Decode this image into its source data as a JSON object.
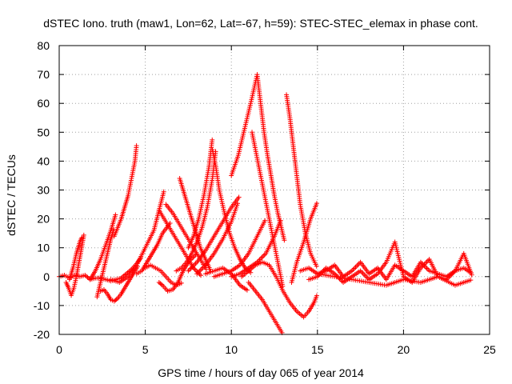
{
  "chart_data": {
    "type": "scatter",
    "title": "dSTEC Iono. truth (maw1, Lon=62, Lat=-67, h=59): STEC-STEC_elemax in phase cont.",
    "xlabel": "GPS time / hours of day 065 of year 2014",
    "ylabel": "dSTEC  / TECUs",
    "xlim": [
      0,
      25
    ],
    "ylim": [
      -20,
      80
    ],
    "xticks": [
      0,
      5,
      10,
      15,
      20,
      25
    ],
    "yticks": [
      -20,
      -10,
      0,
      10,
      20,
      30,
      40,
      50,
      60,
      70,
      80
    ],
    "grid": true,
    "marker": "+",
    "color": "#ff0000",
    "series": [
      {
        "x": [
          0,
          0.3,
          0.6,
          0.9,
          1.2,
          1.5,
          1.8,
          2.1,
          2.4,
          2.7,
          3.0,
          3.3,
          3.6,
          3.9,
          4.2,
          4.5,
          4.8
        ],
        "y": [
          0,
          0.5,
          -0.5,
          0.5,
          0,
          0.5,
          -1,
          -0.5,
          -0.5,
          -1,
          -1.5,
          -1,
          -0.5,
          1,
          2.5,
          4.5,
          7
        ]
      },
      {
        "x": [
          0.4,
          0.55,
          0.7,
          0.85,
          1.0,
          1.15,
          1.3,
          1.45
        ],
        "y": [
          -2,
          -4,
          -6.5,
          -4,
          0,
          5,
          10,
          15
        ]
      },
      {
        "x": [
          0.6,
          0.8,
          1.0,
          1.2,
          1.35
        ],
        "y": [
          -1,
          3,
          8,
          12,
          14
        ]
      },
      {
        "x": [
          2.2,
          2.4,
          2.6,
          2.8,
          3.0,
          3.2
        ],
        "y": [
          -7,
          -2,
          3,
          8,
          13,
          17
        ]
      },
      {
        "x": [
          1.8,
          2.1,
          2.4,
          2.7,
          3.0,
          3.3
        ],
        "y": [
          -1,
          2,
          6,
          11,
          16,
          22
        ]
      },
      {
        "x": [
          2.4,
          2.6,
          2.8,
          3.0,
          3.2,
          3.4,
          3.6,
          3.8,
          4.0,
          4.2,
          4.4,
          4.6
        ],
        "y": [
          -5,
          -4.5,
          -6,
          -8,
          -8.5,
          -7.5,
          -6,
          -4,
          -2,
          0,
          2,
          4
        ]
      },
      {
        "x": [
          3.2,
          3.4,
          3.6,
          3.8,
          4.0,
          4.2,
          4.4,
          4.5
        ],
        "y": [
          14,
          17,
          20,
          24,
          28,
          34,
          40,
          46
        ]
      },
      {
        "x": [
          3.0,
          3.5,
          4.0,
          4.5,
          5.0,
          5.5,
          5.8,
          6.1
        ],
        "y": [
          -1,
          -2,
          0,
          4,
          10,
          16,
          23,
          30
        ]
      },
      {
        "x": [
          4.5,
          4.8,
          5.1,
          5.4,
          5.7,
          6.0,
          6.5
        ],
        "y": [
          1,
          2,
          5,
          8,
          11,
          15,
          19
        ]
      },
      {
        "x": [
          5.8,
          6.0,
          6.3,
          6.6,
          6.9,
          7.2,
          7.5,
          8.0
        ],
        "y": [
          -2,
          -3,
          -5,
          -4.5,
          -2,
          2,
          5,
          8
        ]
      },
      {
        "x": [
          5.0,
          5.3,
          5.6,
          5.9,
          6.2,
          6.5,
          6.8,
          7.2
        ],
        "y": [
          3,
          4,
          3,
          2,
          0,
          -2,
          -3,
          -2
        ]
      },
      {
        "x": [
          5.8,
          6.2,
          6.6,
          7.0,
          7.4,
          7.8,
          8.3
        ],
        "y": [
          23,
          19,
          15,
          11,
          7,
          3,
          0
        ]
      },
      {
        "x": [
          6.2,
          6.6,
          7.0,
          7.4,
          7.8,
          8.2,
          8.6
        ],
        "y": [
          25,
          22,
          18,
          14,
          10,
          6,
          2
        ]
      },
      {
        "x": [
          7.0,
          7.3,
          7.6,
          7.9,
          8.2,
          8.5,
          8.8
        ],
        "y": [
          34,
          28,
          22,
          16,
          10,
          6,
          2
        ]
      },
      {
        "x": [
          6.8,
          7.1,
          7.4,
          7.7,
          8.0,
          8.3,
          8.6,
          8.9,
          9.1
        ],
        "y": [
          2,
          3,
          5,
          8,
          12,
          17,
          24,
          34,
          44
        ]
      },
      {
        "x": [
          7.5,
          7.8,
          8.1,
          8.4,
          8.7,
          8.9
        ],
        "y": [
          10,
          14,
          20,
          28,
          38,
          48
        ]
      },
      {
        "x": [
          8.9,
          9.1,
          9.3,
          9.6,
          9.9,
          10.2,
          10.5,
          10.8,
          11.2
        ],
        "y": [
          44,
          38,
          30,
          22,
          15,
          10,
          6,
          3,
          1
        ]
      },
      {
        "x": [
          7.5,
          8.0,
          8.5,
          9.0,
          9.5,
          10.0,
          10.5
        ],
        "y": [
          2,
          5,
          9,
          14,
          19,
          24,
          28
        ]
      },
      {
        "x": [
          8.0,
          8.5,
          9.0,
          9.5,
          10.0,
          10.4
        ],
        "y": [
          1,
          4,
          8,
          13,
          19,
          26
        ]
      },
      {
        "x": [
          8.5,
          9.0,
          9.5,
          10.0,
          10.5,
          11.0
        ],
        "y": [
          1,
          2,
          3,
          1,
          -3,
          -5
        ]
      },
      {
        "x": [
          9.0,
          9.5,
          10.0,
          10.5,
          11.0,
          11.5,
          12.0
        ],
        "y": [
          0,
          1,
          2,
          4,
          8,
          14,
          20
        ]
      },
      {
        "x": [
          10.0,
          10.5,
          11.0,
          11.5,
          12.0,
          12.5,
          12.9
        ],
        "y": [
          0,
          1,
          3,
          5,
          8,
          14,
          20
        ]
      },
      {
        "x": [
          10.0,
          10.4,
          10.8,
          11.2,
          11.5
        ],
        "y": [
          35,
          42,
          52,
          62,
          70
        ]
      },
      {
        "x": [
          11.5,
          11.7,
          11.9,
          12.1,
          12.3,
          12.5,
          12.7,
          12.9,
          13.1
        ],
        "y": [
          70,
          60,
          50,
          42,
          35,
          28,
          22,
          17,
          12
        ]
      },
      {
        "x": [
          11.2,
          11.4,
          11.6,
          11.8,
          12.0,
          12.2,
          12.4,
          12.6,
          12.8,
          13.0
        ],
        "y": [
          50,
          44,
          38,
          32,
          26,
          20,
          14,
          8,
          2,
          -4
        ]
      },
      {
        "x": [
          10.6,
          11.0,
          11.4,
          11.8,
          12.2,
          12.6,
          13.0,
          13.4,
          13.8,
          14.2
        ],
        "y": [
          0,
          2,
          4,
          5,
          4,
          0,
          -5,
          -9,
          -12,
          -14
        ]
      },
      {
        "x": [
          11.0,
          11.4,
          11.8,
          12.2,
          12.6,
          13.0
        ],
        "y": [
          -2,
          -5,
          -8,
          -12,
          -16,
          -20
        ]
      },
      {
        "x": [
          14.2,
          14.5,
          14.8,
          15.0
        ],
        "y": [
          -14,
          -12,
          -9,
          -6
        ]
      },
      {
        "x": [
          13.2,
          13.4,
          13.6,
          13.8,
          14.0,
          14.3,
          14.6,
          15.0
        ],
        "y": [
          63,
          55,
          45,
          35,
          25,
          15,
          8,
          3
        ]
      },
      {
        "x": [
          13.5,
          13.8,
          14.2,
          14.6,
          15.0
        ],
        "y": [
          -2,
          5,
          12,
          20,
          26
        ]
      },
      {
        "x": [
          14.0,
          14.5,
          15.0,
          15.5,
          16.0,
          16.5,
          17.0,
          17.5,
          18.0,
          18.5,
          19.0,
          19.5,
          20.0,
          20.5,
          21.0,
          21.5,
          22.0,
          22.5,
          23.0,
          23.5,
          24.0
        ],
        "y": [
          2,
          3,
          1,
          2,
          4,
          0,
          2,
          5,
          1,
          3,
          -1,
          4,
          2,
          0,
          5,
          2,
          1,
          0,
          2,
          3,
          1
        ]
      },
      {
        "x": [
          14.5,
          15.0,
          15.5,
          16.0,
          16.5,
          17.0,
          17.5,
          18.0,
          18.5,
          19.0,
          19.5,
          20.0,
          20.5,
          21.0,
          21.5,
          22.0,
          22.5,
          23.0,
          23.5,
          24.0
        ],
        "y": [
          -1,
          0,
          3,
          1,
          -2,
          0,
          2,
          -1,
          1,
          5,
          12,
          0,
          -2,
          3,
          6,
          0,
          -1,
          2,
          8,
          0
        ]
      },
      {
        "x": [
          15.0,
          16.0,
          17.0,
          18.0,
          19.0,
          20.0,
          21.0,
          22.0,
          23.0,
          24.0
        ],
        "y": [
          1,
          0,
          -1,
          -2,
          -3,
          -1,
          -2,
          0,
          -3,
          -1
        ]
      }
    ]
  }
}
